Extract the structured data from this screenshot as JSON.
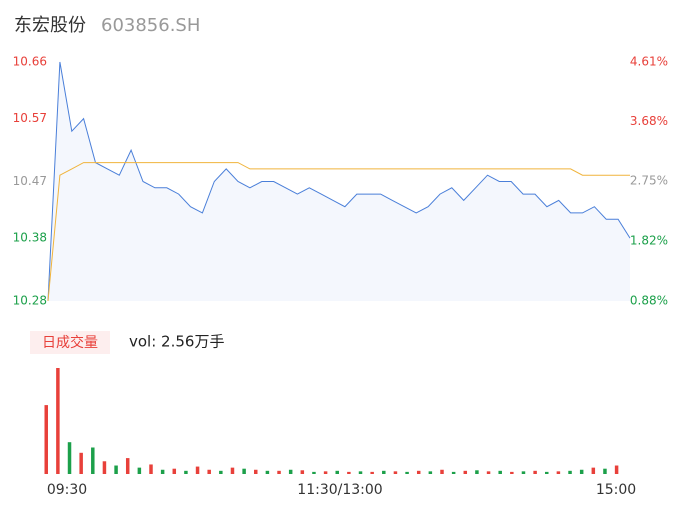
{
  "title": "东宏股份",
  "code": "603856.SH",
  "chart_data": [
    {
      "type": "line",
      "ylim": [
        10.28,
        10.66
      ],
      "yticks": [
        10.66,
        10.57,
        10.47,
        10.38,
        10.28
      ],
      "y2lim": [
        0.88,
        4.61
      ],
      "y2ticks": [
        {
          "value": 4.61,
          "label": "4.61%"
        },
        {
          "value": 3.68,
          "label": "3.68%"
        },
        {
          "value": 2.75,
          "label": "2.75%"
        },
        {
          "value": 1.82,
          "label": "1.82%"
        },
        {
          "value": 0.88,
          "label": "0.88%"
        }
      ],
      "tick_colors": [
        "#e8403a",
        "#e8403a",
        "#999999",
        "#1ca04a",
        "#1ca04a"
      ],
      "series": [
        {
          "color": "#4a7fd9",
          "fill": "#f4f7fd",
          "values": [
            10.28,
            10.66,
            10.55,
            10.57,
            10.5,
            10.49,
            10.48,
            10.52,
            10.47,
            10.46,
            10.46,
            10.45,
            10.43,
            10.42,
            10.47,
            10.49,
            10.47,
            10.46,
            10.47,
            10.47,
            10.46,
            10.45,
            10.46,
            10.45,
            10.44,
            10.43,
            10.45,
            10.45,
            10.45,
            10.44,
            10.43,
            10.42,
            10.43,
            10.45,
            10.46,
            10.44,
            10.46,
            10.48,
            10.47,
            10.47,
            10.45,
            10.45,
            10.43,
            10.44,
            10.42,
            10.42,
            10.43,
            10.41,
            10.41,
            10.38
          ]
        },
        {
          "color": "#f0b43c",
          "values": [
            10.28,
            10.48,
            10.49,
            10.5,
            10.5,
            10.5,
            10.5,
            10.5,
            10.5,
            10.5,
            10.5,
            10.5,
            10.5,
            10.5,
            10.5,
            10.5,
            10.5,
            10.49,
            10.49,
            10.49,
            10.49,
            10.49,
            10.49,
            10.49,
            10.49,
            10.49,
            10.49,
            10.49,
            10.49,
            10.49,
            10.49,
            10.49,
            10.49,
            10.49,
            10.49,
            10.49,
            10.49,
            10.49,
            10.49,
            10.49,
            10.49,
            10.49,
            10.49,
            10.49,
            10.49,
            10.48,
            10.48,
            10.48,
            10.48,
            10.48
          ]
        }
      ]
    },
    {
      "type": "bar",
      "label": "日成交量",
      "summary": "vol: 2.56万手",
      "xtick_labels": [
        "09:30",
        "11:30/13:00",
        "15:00"
      ],
      "values": [
        650,
        1000,
        300,
        200,
        250,
        120,
        80,
        150,
        60,
        90,
        40,
        50,
        30,
        70,
        40,
        30,
        60,
        50,
        40,
        30,
        30,
        40,
        35,
        20,
        25,
        30,
        20,
        25,
        20,
        30,
        25,
        20,
        30,
        25,
        40,
        20,
        30,
        35,
        25,
        30,
        20,
        25,
        30,
        20,
        25,
        30,
        40,
        60,
        50,
        80
      ],
      "colors": [
        "#e8403a",
        "#e8403a",
        "#1ca04a",
        "#e8403a",
        "#1ca04a",
        "#e8403a",
        "#1ca04a",
        "#e8403a",
        "#1ca04a",
        "#e8403a",
        "#1ca04a",
        "#e8403a",
        "#1ca04a",
        "#e8403a",
        "#e8403a",
        "#1ca04a",
        "#e8403a",
        "#1ca04a",
        "#e8403a",
        "#1ca04a",
        "#e8403a",
        "#1ca04a",
        "#e8403a",
        "#1ca04a",
        "#e8403a",
        "#1ca04a",
        "#e8403a",
        "#1ca04a",
        "#e8403a",
        "#1ca04a",
        "#e8403a",
        "#1ca04a",
        "#e8403a",
        "#1ca04a",
        "#e8403a",
        "#1ca04a",
        "#e8403a",
        "#1ca04a",
        "#e8403a",
        "#1ca04a",
        "#e8403a",
        "#1ca04a",
        "#e8403a",
        "#1ca04a",
        "#e8403a",
        "#1ca04a",
        "#1ca04a",
        "#e8403a",
        "#1ca04a",
        "#e8403a"
      ]
    }
  ]
}
